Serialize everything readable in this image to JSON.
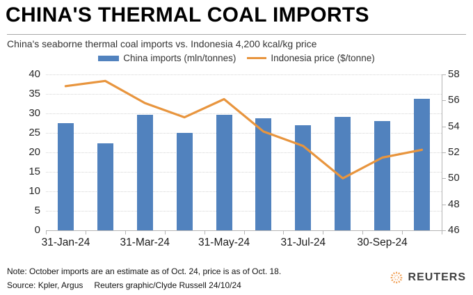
{
  "header": {
    "title": "CHINA'S THERMAL COAL IMPORTS",
    "subtitle": "China's seaborne thermal coal imports vs. Indonesia 4,200 kcal/kg price"
  },
  "legend": [
    {
      "label": "China imports (mln/tonnes)",
      "color": "#5182be",
      "type": "bar"
    },
    {
      "label": "Indonesia price ($/tonne)",
      "color": "#e8953e",
      "type": "line"
    }
  ],
  "chart_data": {
    "type": "bar+line combo",
    "n_points": 10,
    "x_tick_labels": [
      "31-Jan-24",
      "31-Mar-24",
      "31-May-24",
      "31-Jul-24",
      "30-Sep-24"
    ],
    "x_tick_positions": [
      0,
      2,
      4,
      6,
      8
    ],
    "series": [
      {
        "name": "China imports (mln/tonnes)",
        "type": "bar",
        "axis": "left",
        "color": "#5182be",
        "values": [
          27.5,
          22.4,
          29.7,
          25.0,
          29.6,
          28.7,
          27.0,
          29.1,
          28.1,
          33.8
        ]
      },
      {
        "name": "Indonesia price ($/tonne)",
        "type": "line",
        "axis": "right",
        "color": "#e8953e",
        "values": [
          57.1,
          57.5,
          55.8,
          54.7,
          56.1,
          53.6,
          52.5,
          50.0,
          51.6,
          52.2
        ]
      }
    ],
    "left_axis": {
      "min": 0,
      "max": 40,
      "ticks": [
        0,
        5,
        10,
        15,
        20,
        25,
        30,
        35,
        40
      ]
    },
    "right_axis": {
      "min": 46,
      "max": 58,
      "ticks": [
        46,
        48,
        50,
        52,
        54,
        56,
        58
      ]
    },
    "grid": "horizontal dotted"
  },
  "footer": {
    "note": "Note: October imports are an estimate as of Oct. 24, price is as of Oct. 18.",
    "source": "Source: Kpler, Argus",
    "credit": "Reuters graphic/Clyde Russell 24/10/24",
    "brand": "REUTERS"
  }
}
